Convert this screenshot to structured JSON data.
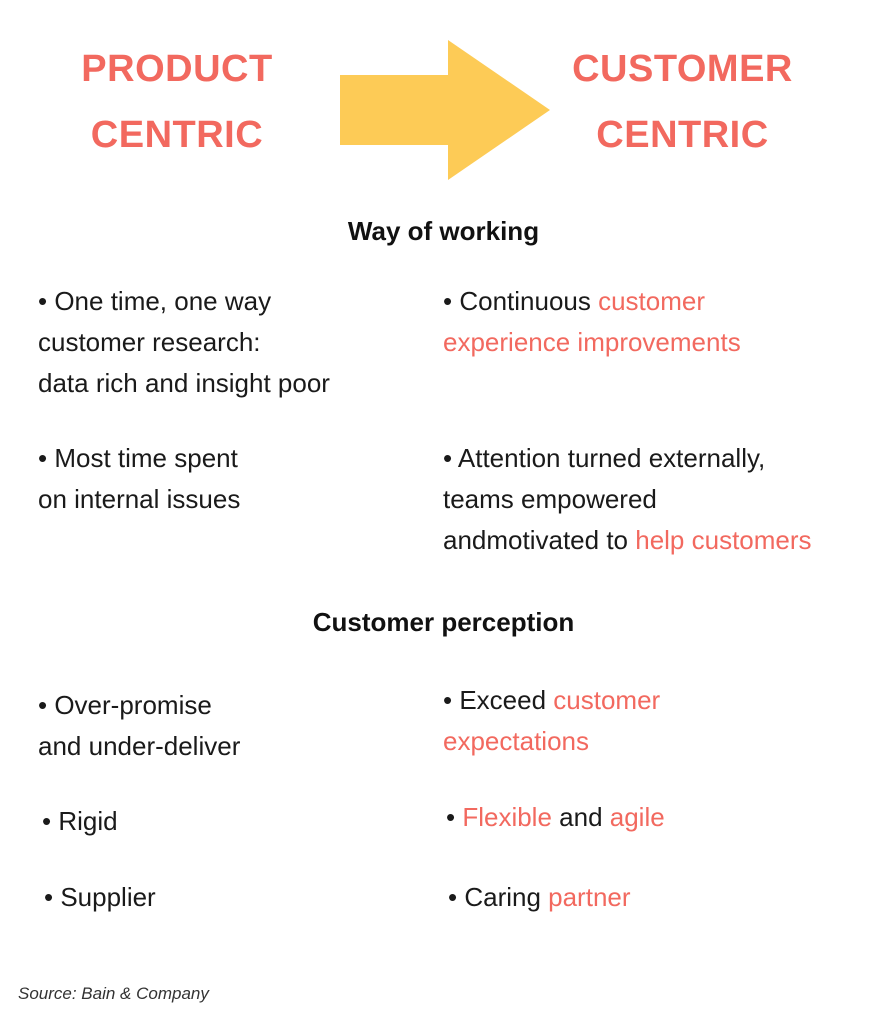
{
  "colors": {
    "accent": "#f2695f",
    "arrow": "#fdcb56",
    "text": "#1a1a1a"
  },
  "header": {
    "left": {
      "line1": "PRODUCT",
      "line2": "CENTRIC"
    },
    "right": {
      "line1": "CUSTOMER",
      "line2": "CENTRIC"
    },
    "arrow_icon": "right-arrow"
  },
  "sections": [
    {
      "title": "Way of working",
      "rows": [
        {
          "left": [
            "• One time, one way",
            "customer research:",
            "data rich and insight poor"
          ],
          "right": [
            [
              {
                "t": "• Continuous "
              },
              {
                "t": "customer",
                "hl": true
              }
            ],
            [
              {
                "t": "experience improvements",
                "hl": true
              }
            ]
          ]
        },
        {
          "left": [
            "• Most time spent",
            "on internal issues"
          ],
          "right": [
            [
              {
                "t": "• Attention turned externally,"
              }
            ],
            [
              {
                "t": "teams empowered"
              }
            ],
            [
              {
                "t": "andmotivated to "
              },
              {
                "t": "help customers",
                "hl": true
              }
            ]
          ]
        }
      ]
    },
    {
      "title": "Customer perception",
      "rows": [
        {
          "left": [
            "• Over-promise",
            "and under-deliver"
          ],
          "right": [
            [
              {
                "t": "• Exceed "
              },
              {
                "t": "customer",
                "hl": true
              }
            ],
            [
              {
                "t": "expectations",
                "hl": true
              }
            ]
          ]
        },
        {
          "left": [
            "• Rigid"
          ],
          "right": [
            [
              {
                "t": "• "
              },
              {
                "t": "Flexible",
                "hl": true
              },
              {
                "t": " and "
              },
              {
                "t": "agile",
                "hl": true
              }
            ]
          ]
        },
        {
          "left": [
            "• Supplier"
          ],
          "right": [
            [
              {
                "t": "• Caring "
              },
              {
                "t": "partner",
                "hl": true
              }
            ]
          ]
        }
      ]
    }
  ],
  "source": "Source: Bain & Company"
}
